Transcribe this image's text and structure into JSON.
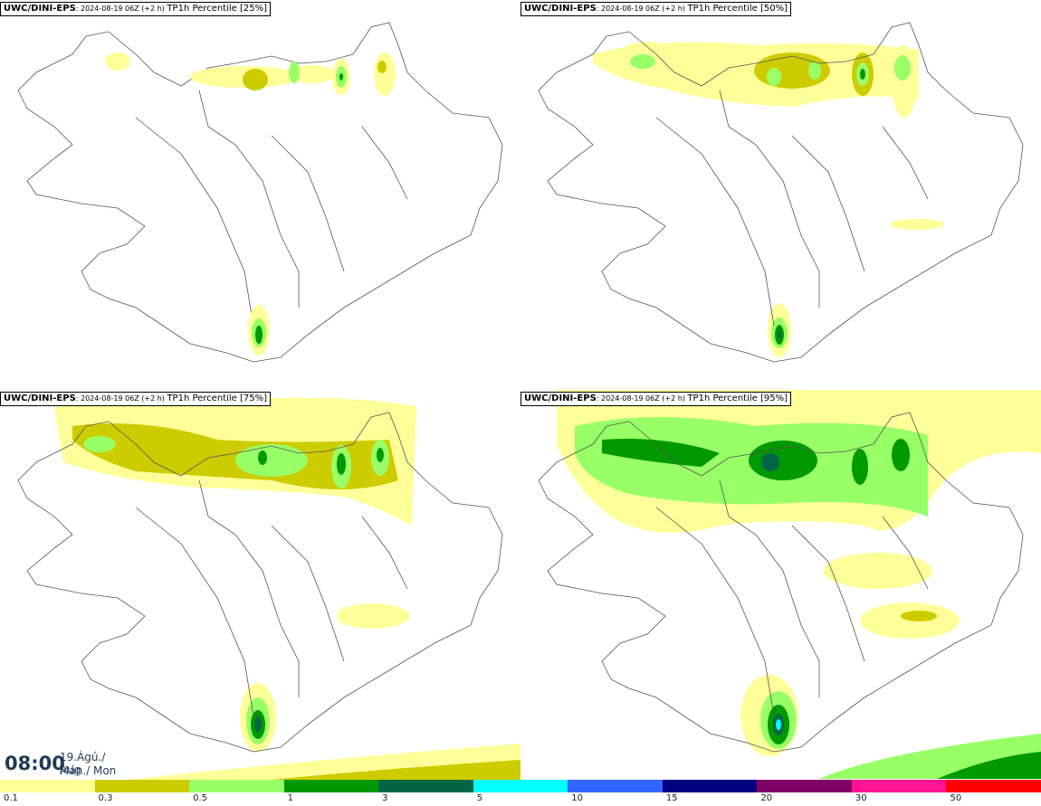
{
  "panels": [
    {
      "model": "UWC/DINI-EPS",
      "run": ": 2024-08-19 06Z (+2 h) ",
      "field": "TP1h Percentile [25%]"
    },
    {
      "model": "UWC/DINI-EPS",
      "run": ": 2024-08-19 06Z (+2 h) ",
      "field": "TP1h Percentile [50%]"
    },
    {
      "model": "UWC/DINI-EPS",
      "run": ": 2024-08-19 06Z (+2 h) ",
      "field": "TP1h Percentile [75%]"
    },
    {
      "model": "UWC/DINI-EPS",
      "run": ": 2024-08-19 06Z (+2 h) ",
      "field": "TP1h Percentile [95%]"
    }
  ],
  "valid_time": {
    "time": "08:00",
    "date_line1": "19.Ágú./ Aug",
    "date_line2": "Mán./ Mon"
  },
  "legend": {
    "colors": [
      "#ffff99",
      "#cccc00",
      "#99ff66",
      "#009900",
      "#006644",
      "#00ffff",
      "#3366ff",
      "#000080",
      "#800066",
      "#ff1493",
      "#ff0000"
    ],
    "labels": [
      "0.1",
      "0.3",
      "0.5",
      "1",
      "3",
      "5",
      "10",
      "15",
      "20",
      "30",
      "50"
    ]
  },
  "map_colors": {
    "outline": "#555555",
    "light_yellow": "#ffff99",
    "olive": "#cccc00",
    "light_green": "#99ff66",
    "green": "#009900",
    "dark_green": "#006644",
    "cyan": "#00ffff"
  }
}
